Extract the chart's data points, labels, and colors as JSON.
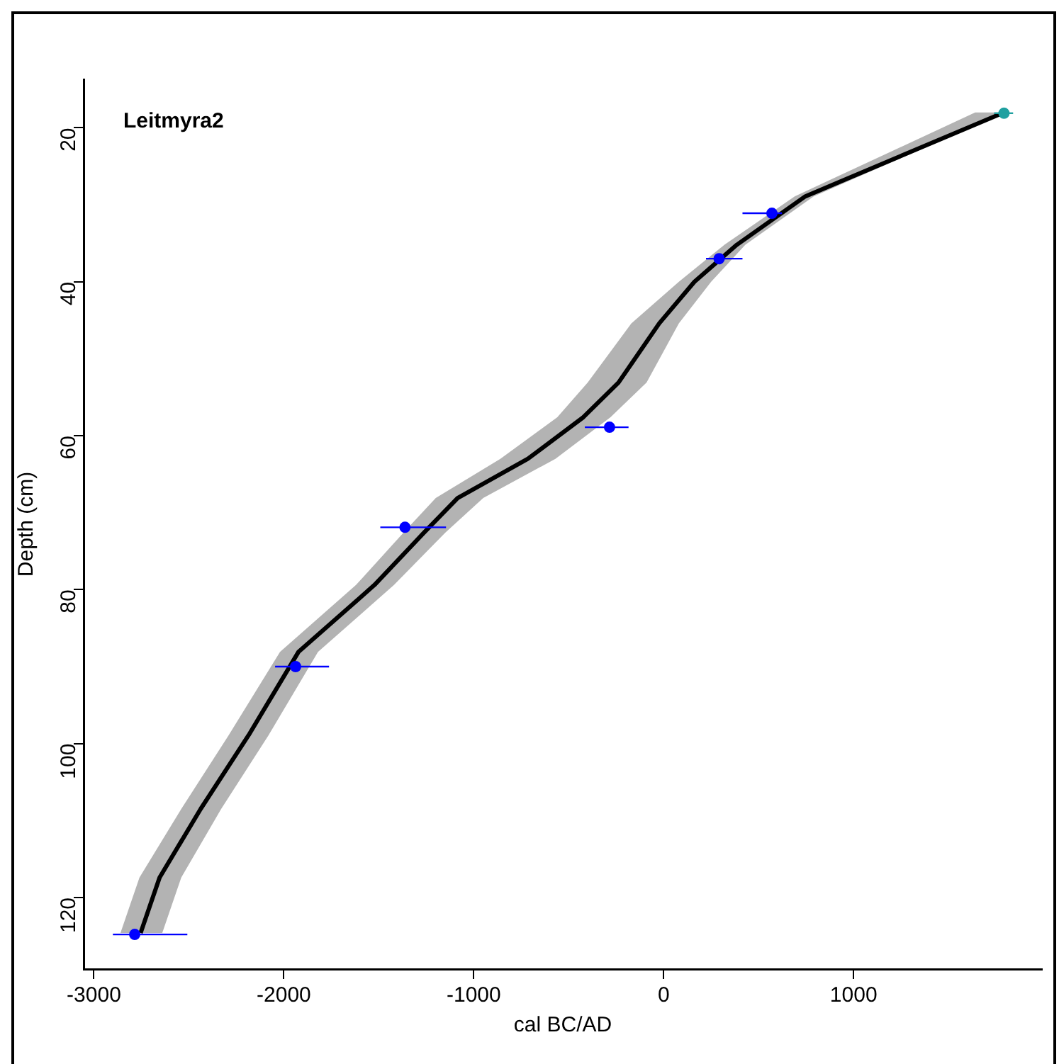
{
  "chart_data": {
    "type": "line",
    "xlabel": "cal BC/AD",
    "ylabel": "Depth (cm)",
    "annotations": [
      "Leitmyra2"
    ],
    "xlim": [
      -3054,
      1992
    ],
    "ylim": [
      129.3,
      13.7
    ],
    "xticks": [
      -3000,
      -2000,
      -1000,
      0,
      1000
    ],
    "yticks": [
      20,
      40,
      60,
      80,
      100,
      120
    ],
    "grid": false,
    "legend": false,
    "series": [
      {
        "type": "area",
        "color": "#b3b3b3",
        "x": [
          1640,
          690,
          320,
          80,
          -170,
          -400,
          -560,
          -860,
          -1200,
          -1370,
          -1620,
          -2020,
          -2290,
          -2540,
          -2760,
          -2860,
          -2640,
          -2540,
          -2330,
          -2080,
          -1820,
          -1420,
          -1150,
          -950,
          -570,
          -280,
          -90,
          80,
          250,
          430,
          790,
          1800
        ],
        "values": [
          18,
          28.9,
          35.2,
          40,
          45.4,
          53.1,
          57.6,
          63,
          68.1,
          72.6,
          79.4,
          88.1,
          98.9,
          108.5,
          117.4,
          124.6,
          124.6,
          117.4,
          108.5,
          98.9,
          88.1,
          79.4,
          72.6,
          68.1,
          63,
          57.6,
          53.1,
          45.4,
          40,
          35.2,
          28.9,
          18
        ]
      },
      {
        "color": "#000000",
        "x": [
          1792,
          746,
          385,
          162,
          -23,
          -238,
          -423,
          -715,
          -1085,
          -1262,
          -1523,
          -1923,
          -2185,
          -2438,
          -2654,
          -2754
        ],
        "values": [
          18,
          28.9,
          35.2,
          40,
          45.4,
          53.1,
          57.6,
          63,
          68.1,
          72.6,
          79.4,
          88.1,
          98.9,
          108.5,
          117.4,
          124.6
        ]
      },
      {
        "type": "scatter",
        "color": "#0000ff",
        "marker": "circle",
        "x": [
          570,
          292,
          -285,
          -1362,
          -1938,
          -2785
        ],
        "values": [
          31.1,
          37,
          58.9,
          71.9,
          90,
          124.8
        ],
        "xerrors": [
          [
            415,
            623
          ],
          [
            223,
            415
          ],
          [
            -415,
            -185
          ],
          [
            -1492,
            -1146
          ],
          [
            -2046,
            -1762
          ],
          [
            -2900,
            -2508
          ]
        ]
      },
      {
        "type": "scatter",
        "color": "#20a0a0",
        "marker": "circle",
        "x": [
          1792
        ],
        "values": [
          18.1
        ],
        "xerrors": [
          [
            1740,
            1840
          ]
        ]
      }
    ]
  }
}
